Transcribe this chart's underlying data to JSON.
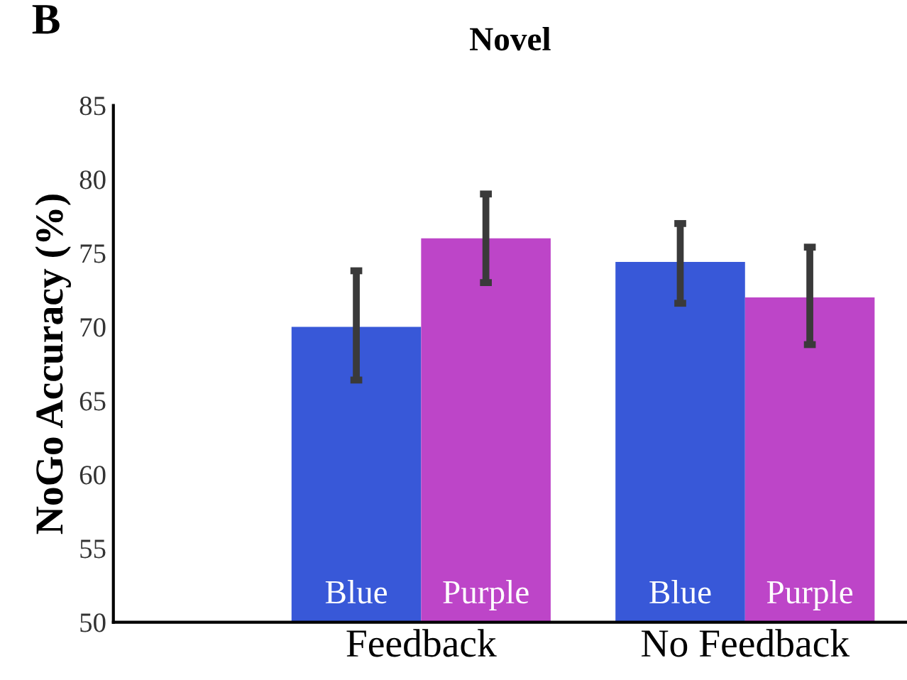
{
  "chart_data": {
    "type": "bar",
    "title": "Novel",
    "ylabel": "NoGo Accuracy (%)",
    "annotations": [
      "B"
    ],
    "categories": [
      "Feedback",
      "No Feedback"
    ],
    "series": [
      {
        "name": "Blue",
        "color": "#3858d8",
        "values": [
          70.0,
          74.4
        ],
        "errors": [
          [
            66.4,
            73.8
          ],
          [
            71.6,
            77.0
          ]
        ]
      },
      {
        "name": "Purple",
        "color": "#bd45c8",
        "values": [
          76.0,
          72.0
        ],
        "errors": [
          [
            73.0,
            79.0
          ],
          [
            68.8,
            75.4
          ]
        ]
      }
    ],
    "ylim": [
      50,
      85
    ],
    "yticks": [
      50,
      55,
      60,
      65,
      70,
      75,
      80,
      85
    ],
    "grid": false,
    "legend": false
  }
}
